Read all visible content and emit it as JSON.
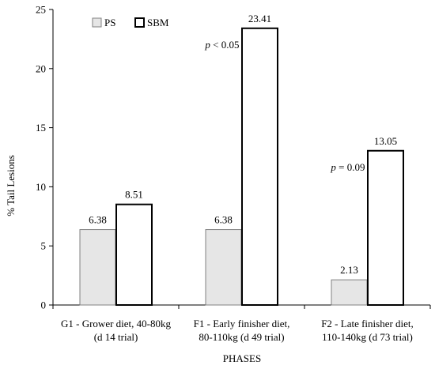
{
  "chart_data": {
    "type": "bar",
    "title": "",
    "xlabel": "PHASES",
    "ylabel": "% Tail Lesions",
    "ylim": [
      0,
      25
    ],
    "yticks": [
      0,
      5,
      10,
      15,
      20,
      25
    ],
    "grid": false,
    "legend_position": "top-left",
    "categories": [
      [
        "G1 - Grower diet, 40-80kg",
        "(d 14 trial)"
      ],
      [
        "F1 - Early finisher diet,",
        "80-110kg (d 49 trial)"
      ],
      [
        "F2 - Late finisher diet,",
        "110-140kg (d 73 trial)"
      ]
    ],
    "series": [
      {
        "name": "PS",
        "values": [
          6.38,
          6.38,
          2.13
        ],
        "fill": "#e6e6e6",
        "stroke": "#808080",
        "labels": [
          "6.38",
          "6.38",
          "2.13"
        ]
      },
      {
        "name": "SBM",
        "values": [
          8.51,
          23.41,
          13.05
        ],
        "fill": "#ffffff",
        "stroke": "#000000",
        "labels": [
          "8.51",
          "23.41",
          "13.05"
        ]
      }
    ],
    "annotations": [
      {
        "category": 1,
        "italic": "p",
        "text": " < 0.05"
      },
      {
        "category": 2,
        "italic": "p",
        "text": " = 0.09"
      }
    ]
  }
}
